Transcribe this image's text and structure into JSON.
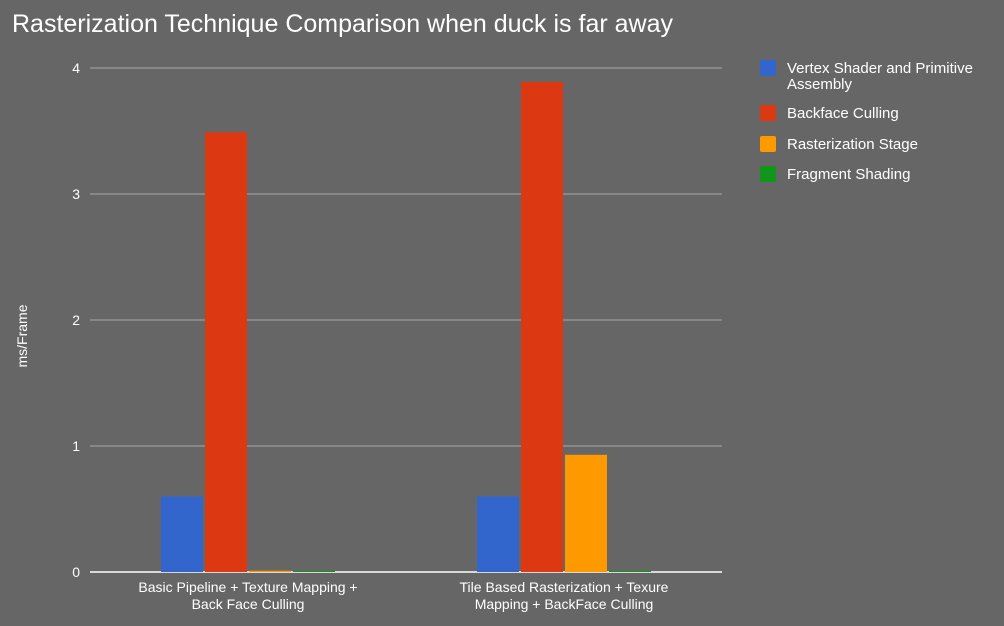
{
  "chart_data": {
    "type": "bar",
    "title": "Rasterization Technique Comparison when duck is far away",
    "xlabel": "",
    "ylabel": "ms/Frame",
    "ylim": [
      0,
      4
    ],
    "yticks": [
      0,
      1,
      2,
      3,
      4
    ],
    "grid": true,
    "legend": "right",
    "categories": [
      [
        "Basic Pipeline + Texture Mapping +",
        "Back Face Culling"
      ],
      [
        "Tile Based Rasterization + Texure",
        "Mapping + BackFace Culling"
      ]
    ],
    "series": [
      {
        "name": [
          "Vertex Shader and Primitive",
          "Assembly"
        ],
        "values": [
          0.6,
          0.6
        ],
        "color": "#3366cc"
      },
      {
        "name": [
          "Backface Culling"
        ],
        "values": [
          3.49,
          3.89
        ],
        "color": "#dc3912"
      },
      {
        "name": [
          "Rasterization Stage"
        ],
        "values": [
          0.01,
          0.93
        ],
        "color": "#ff9900"
      },
      {
        "name": [
          "Fragment Shading"
        ],
        "values": [
          0.005,
          0.005
        ],
        "color": "#109618"
      }
    ]
  }
}
